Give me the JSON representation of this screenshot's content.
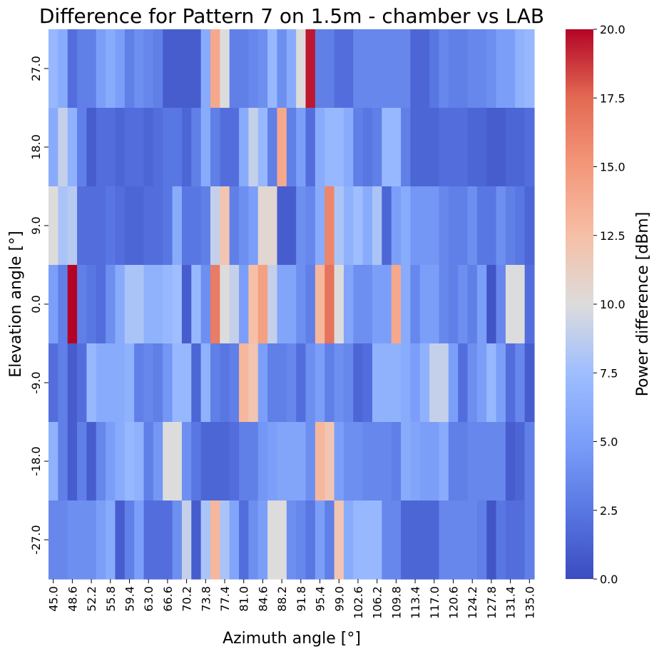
{
  "chart_data": {
    "type": "heatmap",
    "title": "Difference for Pattern 7 on 1.5m - chamber vs LAB",
    "xlabel": "Azimuth angle [°]",
    "ylabel": "Elevation angle [°]",
    "colorbar_label": "Power difference [dBm]",
    "colormap": "coolwarm",
    "vmin": 0,
    "vmax": 20,
    "colorbar_ticks": [
      "0.0",
      "2.5",
      "5.0",
      "7.5",
      "10.0",
      "12.5",
      "15.0",
      "17.5",
      "20.0"
    ],
    "x_tick_labels": [
      "45.0",
      "48.6",
      "52.2",
      "55.8",
      "59.4",
      "63.0",
      "66.6",
      "70.2",
      "73.8",
      "77.4",
      "81.0",
      "84.6",
      "88.2",
      "91.8",
      "95.4",
      "99.0",
      "102.6",
      "106.2",
      "109.8",
      "113.4",
      "117.0",
      "120.6",
      "124.2",
      "127.8",
      "131.4",
      "135.0"
    ],
    "x": [
      45.0,
      46.8,
      48.6,
      50.4,
      52.2,
      54.0,
      55.8,
      57.6,
      59.4,
      61.2,
      63.0,
      64.8,
      66.6,
      68.4,
      70.2,
      72.0,
      73.8,
      75.6,
      77.4,
      79.2,
      81.0,
      82.8,
      84.6,
      86.4,
      88.2,
      90.0,
      91.8,
      93.6,
      95.4,
      97.2,
      99.0,
      100.8,
      102.6,
      104.4,
      106.2,
      108.0,
      109.8,
      111.6,
      113.4,
      115.2,
      117.0,
      118.8,
      120.6,
      122.4,
      124.2,
      126.0,
      127.8,
      129.6,
      131.4,
      133.2,
      135.0
    ],
    "y": [
      27.0,
      18.0,
      9.0,
      0.0,
      -9.0,
      -18.0,
      -27.0
    ],
    "y_tick_labels": [
      "27.0",
      "18.0",
      "9.0",
      "0.0",
      "-9.0",
      "-18.0",
      "-27.0"
    ],
    "values": [
      [
        7.0,
        6.0,
        2.0,
        3.0,
        3.0,
        5.0,
        6.0,
        5.0,
        3.0,
        4.0,
        3.5,
        3.0,
        1.0,
        1.0,
        1.0,
        1.0,
        6.0,
        14.0,
        10.0,
        3.0,
        3.0,
        3.5,
        4.0,
        7.0,
        4.0,
        6.0,
        10.0,
        19.5,
        3.0,
        3.0,
        2.0,
        2.0,
        3.5,
        3.5,
        3.5,
        3.5,
        3.5,
        3.5,
        1.5,
        1.5,
        2.5,
        3.5,
        3.0,
        3.0,
        3.5,
        3.5,
        4.0,
        5.0,
        5.0,
        6.5,
        7.0
      ],
      [
        6.0,
        9.0,
        6.5,
        3.0,
        1.0,
        2.0,
        2.0,
        1.5,
        2.0,
        2.0,
        1.5,
        2.0,
        2.5,
        2.5,
        1.5,
        3.0,
        6.0,
        3.0,
        2.0,
        2.0,
        6.0,
        9.0,
        7.0,
        3.0,
        14.0,
        3.0,
        5.0,
        2.0,
        6.0,
        7.0,
        7.0,
        6.0,
        3.0,
        2.5,
        3.0,
        7.0,
        7.0,
        3.0,
        1.5,
        1.5,
        1.5,
        2.0,
        2.0,
        2.0,
        1.5,
        1.5,
        1.0,
        1.0,
        1.5,
        1.5,
        2.0
      ],
      [
        10.0,
        8.0,
        8.5,
        2.0,
        2.0,
        2.0,
        2.5,
        2.0,
        1.5,
        1.5,
        2.0,
        2.0,
        2.5,
        6.0,
        2.5,
        2.5,
        3.0,
        9.0,
        12.0,
        3.0,
        4.0,
        5.0,
        10.5,
        10.5,
        1.0,
        1.0,
        4.0,
        3.5,
        6.0,
        16.0,
        8.0,
        6.5,
        7.5,
        6.0,
        8.0,
        1.5,
        5.0,
        6.0,
        4.5,
        4.5,
        4.5,
        3.5,
        3.0,
        3.0,
        4.0,
        2.5,
        2.5,
        4.0,
        3.0,
        2.5,
        1.5
      ],
      [
        5.0,
        3.0,
        20.0,
        3.0,
        2.5,
        2.0,
        4.0,
        6.0,
        8.0,
        8.0,
        6.5,
        6.5,
        7.0,
        7.5,
        1.0,
        7.0,
        4.0,
        16.5,
        10.0,
        9.0,
        5.0,
        12.5,
        14.5,
        9.0,
        5.5,
        5.5,
        4.0,
        3.0,
        13.0,
        17.0,
        10.0,
        5.5,
        4.0,
        4.0,
        5.0,
        5.0,
        14.0,
        6.0,
        3.5,
        5.0,
        5.0,
        3.5,
        3.0,
        4.0,
        3.0,
        5.0,
        0.5,
        3.5,
        10.0,
        10.0,
        2.0
      ],
      [
        2.0,
        3.0,
        1.0,
        2.0,
        7.0,
        6.0,
        6.0,
        6.0,
        6.5,
        3.0,
        3.5,
        3.0,
        4.5,
        7.0,
        7.0,
        1.5,
        6.5,
        3.0,
        2.5,
        3.0,
        13.0,
        12.0,
        5.0,
        3.0,
        3.0,
        3.5,
        2.0,
        4.0,
        5.0,
        3.0,
        4.0,
        3.5,
        1.5,
        2.0,
        6.5,
        6.5,
        6.5,
        6.0,
        5.0,
        6.5,
        9.0,
        9.0,
        5.0,
        2.0,
        4.0,
        5.0,
        7.0,
        5.0,
        2.0,
        3.5,
        1.0
      ],
      [
        6.5,
        3.0,
        1.0,
        3.0,
        1.0,
        3.5,
        5.0,
        6.0,
        7.0,
        6.5,
        3.0,
        4.5,
        10.0,
        10.0,
        4.0,
        2.5,
        1.5,
        1.5,
        1.5,
        2.0,
        3.0,
        3.0,
        4.5,
        5.0,
        5.5,
        5.5,
        5.5,
        4.0,
        13.0,
        12.0,
        5.0,
        4.0,
        4.0,
        3.5,
        3.5,
        3.5,
        3.0,
        6.0,
        5.5,
        5.0,
        5.0,
        6.0,
        3.0,
        3.0,
        3.5,
        3.5,
        3.5,
        3.5,
        1.0,
        1.5,
        3.0
      ],
      [
        3.5,
        3.5,
        4.0,
        4.0,
        4.0,
        5.0,
        6.0,
        1.0,
        3.0,
        5.0,
        2.0,
        2.0,
        2.0,
        4.0,
        9.0,
        1.0,
        8.0,
        13.0,
        8.0,
        5.5,
        2.0,
        4.0,
        5.0,
        10.0,
        10.0,
        4.0,
        3.5,
        2.5,
        5.0,
        3.0,
        12.0,
        6.0,
        7.0,
        7.0,
        7.0,
        3.5,
        3.5,
        1.5,
        1.5,
        1.5,
        1.5,
        3.5,
        3.5,
        3.5,
        3.5,
        3.0,
        0.5,
        2.5,
        2.0,
        2.0,
        3.0
      ]
    ]
  }
}
